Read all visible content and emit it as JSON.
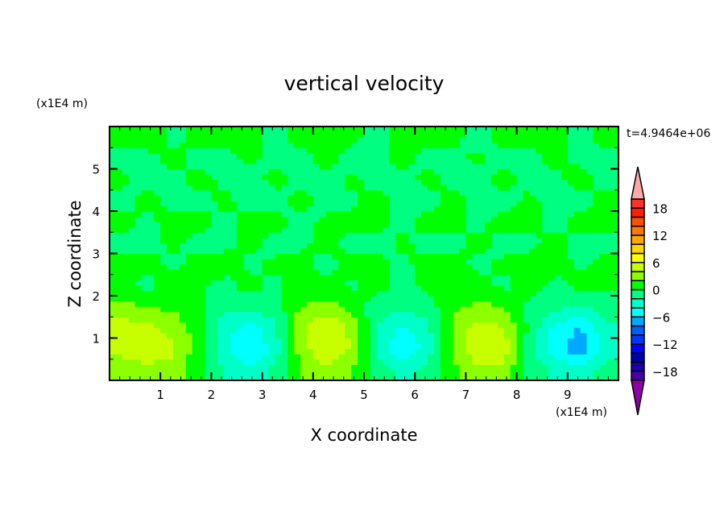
{
  "chart_data": {
    "type": "heatmap",
    "title": "vertical velocity",
    "xlabel": "X coordinate",
    "ylabel": "Z coordinate",
    "x_unit_label": "(x1E4 m)",
    "y_unit_label": "(x1E4 m)",
    "time_label": "t=4.9464e+06",
    "xlim": [
      0,
      10
    ],
    "ylim": [
      0,
      6
    ],
    "x_ticks": [
      1,
      2,
      3,
      4,
      5,
      6,
      7,
      8,
      9
    ],
    "y_ticks": [
      1,
      2,
      3,
      4,
      5
    ],
    "x_centers": [
      0.25,
      0.75,
      1.25,
      1.75,
      2.25,
      2.75,
      3.25,
      3.75,
      4.25,
      4.75,
      5.25,
      5.75,
      6.25,
      6.75,
      7.25,
      7.75,
      8.25,
      8.75,
      9.25,
      9.75
    ],
    "z_centers": [
      0.25,
      0.75,
      1.25,
      1.75,
      2.25,
      2.75,
      3.25,
      3.75,
      4.25,
      4.75,
      5.25,
      5.75
    ],
    "values": [
      [
        3,
        3.5,
        3,
        0.5,
        -2,
        -3,
        -1.5,
        2,
        3.5,
        2,
        -1,
        -2.5,
        -1.5,
        1.5,
        3.5,
        3,
        -0.5,
        -2.5,
        -3,
        -1
      ],
      [
        4.5,
        5,
        4.5,
        1,
        -3.5,
        -6.5,
        -3,
        3,
        6,
        4,
        -2,
        -6,
        -3,
        2,
        6,
        5.5,
        -1,
        -5,
        -8,
        -3
      ],
      [
        5,
        4.5,
        3.5,
        0.8,
        -3,
        -5,
        -2.5,
        3.5,
        6,
        3.5,
        -2,
        -4.5,
        -2.5,
        2.5,
        5,
        4,
        -0.5,
        -4.5,
        -6,
        -2.5
      ],
      [
        2.5,
        2,
        1.5,
        0.5,
        -1.5,
        -1,
        -1,
        2,
        3,
        1.5,
        -1,
        -1.5,
        -1,
        1.5,
        2.5,
        2,
        -0.5,
        -1.5,
        -2,
        -1
      ],
      [
        0.5,
        -0.5,
        0.8,
        0.3,
        -0.5,
        0.6,
        -0.4,
        0.7,
        0.5,
        -0.3,
        0.6,
        -0.5,
        0.4,
        0.8,
        0.5,
        -0.4,
        0.6,
        -0.5,
        0.5,
        0.3
      ],
      [
        0.6,
        0.4,
        -0.3,
        0.5,
        0.7,
        -0.4,
        0.3,
        0.5,
        -0.5,
        0.6,
        0.4,
        -0.3,
        0.5,
        0.6,
        -0.4,
        0.3,
        0.5,
        0.7,
        -0.3,
        0.4
      ],
      [
        -0.4,
        -0.5,
        0.3,
        -0.6,
        -0.4,
        0.4,
        -0.5,
        -0.3,
        0.5,
        -0.4,
        -0.6,
        0.3,
        -0.5,
        -0.4,
        0.4,
        -0.5,
        -0.3,
        0.4,
        -0.5,
        -0.4
      ],
      [
        0.4,
        -0.3,
        0.5,
        0.6,
        -0.4,
        0.5,
        0.4,
        -0.5,
        0.3,
        0.5,
        0.4,
        -0.4,
        0.6,
        0.3,
        -0.3,
        0.5,
        0.4,
        -0.5,
        0.6,
        0.3
      ],
      [
        -0.5,
        0.4,
        -0.4,
        -0.5,
        0.3,
        -0.4,
        -0.6,
        0.4,
        -0.5,
        -0.3,
        0.5,
        -0.4,
        -0.5,
        0.4,
        -0.3,
        -0.5,
        0.3,
        -0.4,
        -0.5,
        0.4
      ],
      [
        0.3,
        -0.5,
        -0.4,
        0.5,
        -0.3,
        -0.5,
        0.4,
        -0.4,
        -0.5,
        0.3,
        -0.4,
        -0.5,
        0.4,
        -0.3,
        -0.5,
        0.4,
        -0.4,
        -0.3,
        0.5,
        -0.4
      ],
      [
        -0.4,
        -0.3,
        0.4,
        -0.5,
        -0.4,
        0.3,
        -0.5,
        -0.4,
        0.4,
        -0.5,
        -0.3,
        0.4,
        -0.5,
        -0.4,
        0.3,
        -0.5,
        -0.4,
        0.4,
        -0.3,
        -0.5
      ],
      [
        0.4,
        0.5,
        -0.3,
        0.4,
        0.5,
        0.3,
        -0.4,
        0.5,
        0.4,
        0.3,
        -0.4,
        0.5,
        0.4,
        0.3,
        -0.5,
        0.4,
        0.5,
        0.3,
        -0.4,
        0.5
      ]
    ],
    "colorbar": {
      "levels_min": -20,
      "levels_max": 20,
      "level_step": 2,
      "tick_labels": [
        "18",
        "12",
        "6",
        "0",
        "-6",
        "-12",
        "-18"
      ],
      "tick_values": [
        18,
        12,
        6,
        0,
        -6,
        -12,
        -18
      ],
      "colors_low_to_high": [
        "#4a00a8",
        "#1a00a8",
        "#0000a8",
        "#0000ff",
        "#0038ff",
        "#0060ff",
        "#00a8ff",
        "#00ffff",
        "#00ffc8",
        "#00ff80",
        "#00ff00",
        "#8cff00",
        "#c8ff00",
        "#ffff00",
        "#ffd800",
        "#ffa800",
        "#ff7800",
        "#ff5000",
        "#ff2000",
        "#ff3030"
      ],
      "under_color": "#8c00a8",
      "over_color": "#ffaaaa"
    }
  }
}
